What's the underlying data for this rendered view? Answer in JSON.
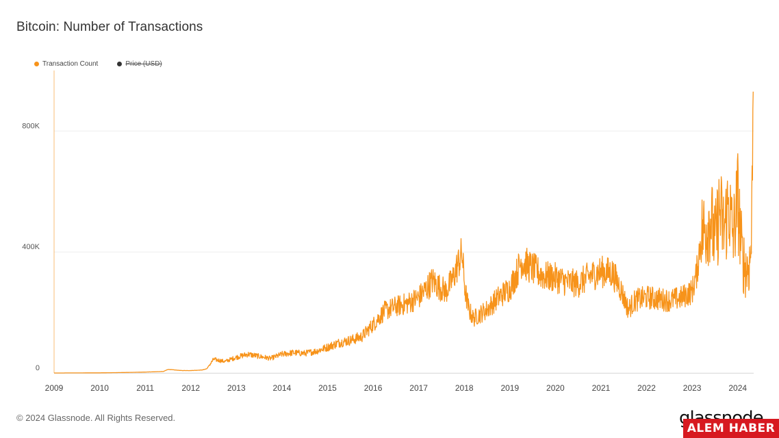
{
  "title": "Bitcoin: Number of Transactions",
  "legend": [
    {
      "label": "Transaction Count",
      "color": "#f7931a",
      "disabled": false
    },
    {
      "label": "Price (USD)",
      "color": "#333333",
      "disabled": true
    }
  ],
  "footer": {
    "copyright": "© 2024 Glassnode. All Rights Reserved."
  },
  "brand": {
    "logo_text": "glassnode",
    "watermark_text": "ALEM HABER"
  },
  "chart_data": {
    "type": "line",
    "title": "Bitcoin: Number of Transactions",
    "xlabel": "",
    "ylabel": "",
    "xlim": [
      2009.0,
      2024.35
    ],
    "ylim": [
      0,
      1000000
    ],
    "grid": true,
    "legend_position": "top-left",
    "x_ticks": [
      "2009",
      "2010",
      "2011",
      "2012",
      "2013",
      "2014",
      "2015",
      "2016",
      "2017",
      "2018",
      "2019",
      "2020",
      "2021",
      "2022",
      "2023",
      "2024"
    ],
    "y_ticks": [
      {
        "value": 0,
        "label": "0"
      },
      {
        "value": 400000,
        "label": "400K"
      },
      {
        "value": 800000,
        "label": "800K"
      }
    ],
    "series": [
      {
        "name": "Transaction Count",
        "color": "#f7931a",
        "x": [
          2009.0,
          2010.0,
          2010.5,
          2011.0,
          2011.4,
          2011.5,
          2011.8,
          2012.0,
          2012.25,
          2012.35,
          2012.5,
          2012.75,
          2013.0,
          2013.25,
          2013.5,
          2013.75,
          2014.0,
          2014.25,
          2014.5,
          2014.75,
          2015.0,
          2015.25,
          2015.5,
          2015.75,
          2016.0,
          2016.25,
          2016.5,
          2016.75,
          2017.0,
          2017.15,
          2017.3,
          2017.45,
          2017.6,
          2017.75,
          2017.85,
          2017.95,
          2018.02,
          2018.1,
          2018.2,
          2018.3,
          2018.5,
          2018.75,
          2019.0,
          2019.15,
          2019.25,
          2019.35,
          2019.5,
          2019.75,
          2020.0,
          2020.25,
          2020.5,
          2020.75,
          2021.0,
          2021.25,
          2021.4,
          2021.5,
          2021.6,
          2021.75,
          2022.0,
          2022.25,
          2022.5,
          2022.75,
          2023.0,
          2023.1,
          2023.2,
          2023.3,
          2023.4,
          2023.5,
          2023.6,
          2023.7,
          2023.8,
          2023.9,
          2024.0,
          2024.1,
          2024.2,
          2024.27,
          2024.3,
          2024.32,
          2024.34
        ],
        "y": [
          0,
          500,
          1500,
          3000,
          5000,
          12000,
          8000,
          8000,
          10000,
          14000,
          45000,
          38000,
          52000,
          62000,
          55000,
          48000,
          62000,
          67000,
          65000,
          72000,
          85000,
          100000,
          108000,
          120000,
          160000,
          205000,
          220000,
          230000,
          250000,
          275000,
          305000,
          285000,
          270000,
          310000,
          355000,
          395000,
          270000,
          210000,
          180000,
          190000,
          210000,
          250000,
          280000,
          330000,
          370000,
          360000,
          345000,
          320000,
          315000,
          300000,
          295000,
          320000,
          335000,
          330000,
          290000,
          250000,
          210000,
          240000,
          250000,
          245000,
          240000,
          248000,
          270000,
          330000,
          460000,
          480000,
          520000,
          430000,
          540000,
          470000,
          560000,
          450000,
          580000,
          380000,
          340000,
          370000,
          440000,
          690000,
          930000
        ]
      }
    ]
  }
}
